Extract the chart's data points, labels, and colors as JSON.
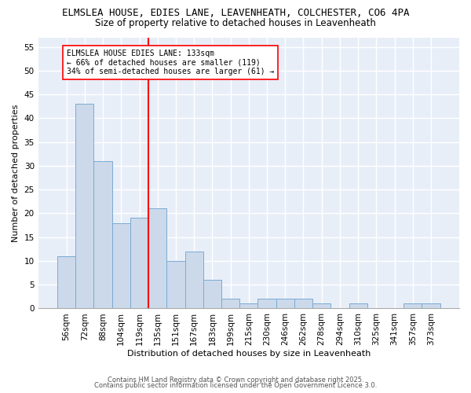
{
  "title1": "ELMSLEA HOUSE, EDIES LANE, LEAVENHEATH, COLCHESTER, CO6 4PA",
  "title2": "Size of property relative to detached houses in Leavenheath",
  "xlabel": "Distribution of detached houses by size in Leavenheath",
  "ylabel": "Number of detached properties",
  "categories": [
    "56sqm",
    "72sqm",
    "88sqm",
    "104sqm",
    "119sqm",
    "135sqm",
    "151sqm",
    "167sqm",
    "183sqm",
    "199sqm",
    "215sqm",
    "230sqm",
    "246sqm",
    "262sqm",
    "278sqm",
    "294sqm",
    "310sqm",
    "325sqm",
    "341sqm",
    "357sqm",
    "373sqm"
  ],
  "values": [
    11,
    43,
    31,
    18,
    19,
    21,
    10,
    12,
    6,
    2,
    1,
    2,
    2,
    2,
    1,
    0,
    1,
    0,
    0,
    1,
    1
  ],
  "bar_color": "#ccd9ea",
  "bar_edge_color": "#7aabd4",
  "vline_color": "red",
  "vline_position": 4.5,
  "annotation_text": "ELMSLEA HOUSE EDIES LANE: 133sqm\n← 66% of detached houses are smaller (119)\n34% of semi-detached houses are larger (61) →",
  "annotation_box_color": "white",
  "annotation_box_edge_color": "red",
  "ylim": [
    0,
    57
  ],
  "yticks": [
    0,
    5,
    10,
    15,
    20,
    25,
    30,
    35,
    40,
    45,
    50,
    55
  ],
  "plot_bg_color": "#e8eef8",
  "fig_bg_color": "#ffffff",
  "grid_color": "#ffffff",
  "footer1": "Contains HM Land Registry data © Crown copyright and database right 2025.",
  "footer2": "Contains public sector information licensed under the Open Government Licence 3.0."
}
